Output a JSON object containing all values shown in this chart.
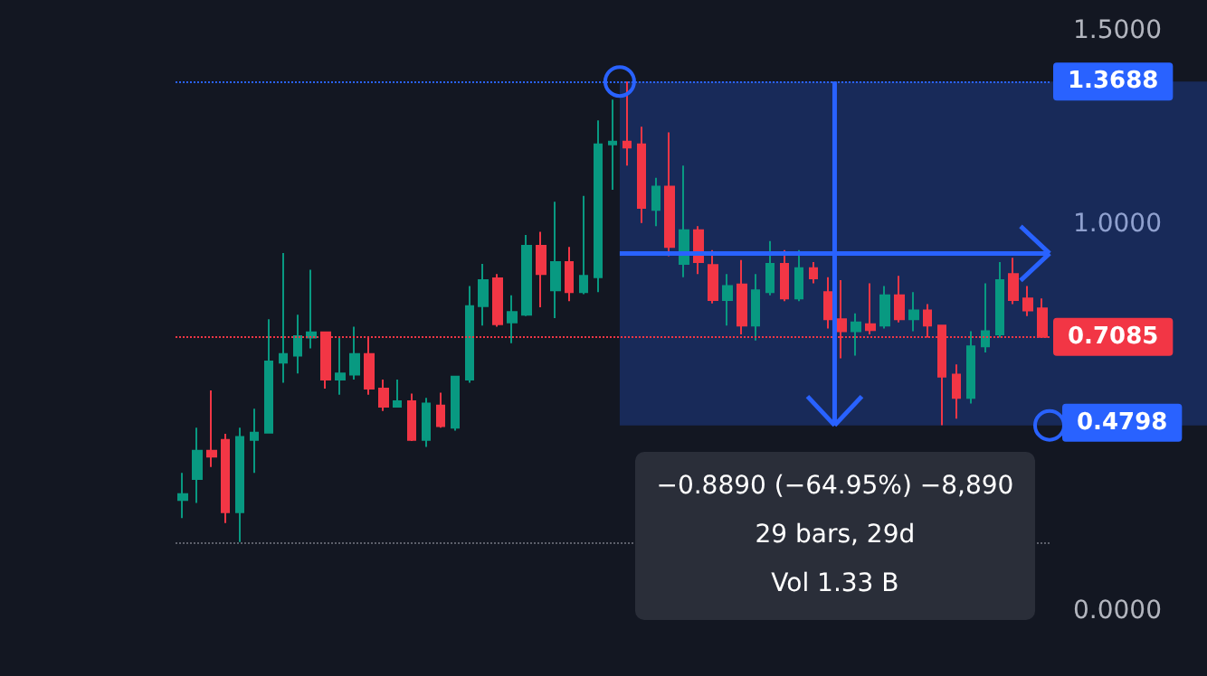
{
  "chart_data": {
    "type": "candlestick",
    "categories": [
      null,
      null,
      null,
      null,
      null,
      null,
      null,
      null,
      null,
      null,
      null,
      null,
      null,
      null,
      null,
      null,
      null,
      null,
      null,
      null,
      null,
      null,
      null,
      null,
      null,
      null,
      null,
      null,
      null,
      null,
      null,
      null,
      null,
      null,
      null,
      null,
      null,
      null,
      null,
      null,
      null,
      null,
      null,
      null,
      null,
      null,
      null,
      null,
      null,
      null,
      null,
      null,
      null,
      null,
      null,
      null,
      null,
      null,
      null,
      null,
      null
    ],
    "ohlc": [
      [
        0.287,
        0.357,
        0.24,
        0.302
      ],
      [
        0.341,
        0.474,
        0.279,
        0.414
      ],
      [
        0.414,
        0.57,
        0.372,
        0.399
      ],
      [
        0.442,
        0.458,
        0.227,
        0.255
      ],
      [
        0.255,
        0.474,
        0.178,
        0.45
      ],
      [
        0.442,
        0.523,
        0.357,
        0.461
      ],
      [
        0.461,
        0.754,
        0.461,
        0.645
      ],
      [
        0.642,
        0.925,
        0.59,
        0.664
      ],
      [
        0.66,
        0.766,
        0.614,
        0.71
      ],
      [
        0.707,
        0.882,
        0.679,
        0.72
      ],
      [
        0.72,
        0.72,
        0.575,
        0.598
      ],
      [
        0.598,
        0.707,
        0.559,
        0.614
      ],
      [
        0.611,
        0.735,
        0.598,
        0.664
      ],
      [
        0.664,
        0.71,
        0.559,
        0.575
      ],
      [
        0.575,
        0.598,
        0.517,
        0.528
      ],
      [
        0.528,
        0.598,
        0.528,
        0.542
      ],
      [
        0.542,
        0.562,
        0.439,
        0.442
      ],
      [
        0.442,
        0.551,
        0.424,
        0.536
      ],
      [
        0.531,
        0.564,
        0.474,
        0.478
      ],
      [
        0.474,
        0.606,
        0.466,
        0.606
      ],
      [
        0.598,
        0.84,
        0.59,
        0.788
      ],
      [
        0.788,
        0.897,
        0.738,
        0.855
      ],
      [
        0.86,
        0.871,
        0.735,
        0.741
      ],
      [
        0.746,
        0.816,
        0.692,
        0.773
      ],
      [
        0.766,
        0.972,
        0.762,
        0.944
      ],
      [
        0.944,
        0.98,
        0.785,
        0.871
      ],
      [
        0.829,
        1.058,
        0.757,
        0.902
      ],
      [
        0.902,
        0.941,
        0.801,
        0.824
      ],
      [
        0.824,
        1.073,
        0.819,
        0.866
      ],
      [
        0.863,
        1.268,
        0.824,
        1.206
      ],
      [
        1.206,
        1.322,
        1.089,
        1.213
      ],
      [
        1.213,
        1.3688,
        1.151,
        1.198
      ],
      [
        1.206,
        1.252,
        1.003,
        1.042
      ],
      [
        1.037,
        1.12,
        0.995,
        1.097
      ],
      [
        1.097,
        1.237,
        0.917,
        0.941
      ],
      [
        0.897,
        1.151,
        0.863,
        0.984
      ],
      [
        0.984,
        0.995,
        0.871,
        0.902
      ],
      [
        0.894,
        0.933,
        0.795,
        0.804
      ],
      [
        0.804,
        0.871,
        0.738,
        0.84
      ],
      [
        0.844,
        0.907,
        0.715,
        0.738
      ],
      [
        0.738,
        0.871,
        0.699,
        0.829
      ],
      [
        0.824,
        0.956,
        0.816,
        0.897
      ],
      [
        0.897,
        0.933,
        0.801,
        0.808
      ],
      [
        0.808,
        0.933,
        0.801,
        0.886
      ],
      [
        0.886,
        0.902,
        0.847,
        0.86
      ],
      [
        0.824,
        0.863,
        0.73,
        0.754
      ],
      [
        0.754,
        0.855,
        0.653,
        0.723
      ],
      [
        0.723,
        0.769,
        0.66,
        0.746
      ],
      [
        0.741,
        0.847,
        0.715,
        0.726
      ],
      [
        0.738,
        0.84,
        0.73,
        0.816
      ],
      [
        0.816,
        0.866,
        0.746,
        0.754
      ],
      [
        0.754,
        0.824,
        0.723,
        0.777
      ],
      [
        0.777,
        0.793,
        0.707,
        0.738
      ],
      [
        0.738,
        0.738,
        0.48,
        0.606
      ],
      [
        0.611,
        0.637,
        0.497,
        0.551
      ],
      [
        0.551,
        0.723,
        0.536,
        0.684
      ],
      [
        0.684,
        0.847,
        0.668,
        0.723
      ],
      [
        0.715,
        0.902,
        0.707,
        0.855
      ],
      [
        0.871,
        0.913,
        0.793,
        0.804
      ],
      [
        0.808,
        0.84,
        0.762,
        0.777
      ],
      [
        0.782,
        0.808,
        0.707,
        0.7085
      ]
    ],
    "ylim": [
      0,
      1.5
    ],
    "yticks": [
      {
        "value": 0,
        "label": "0.0000"
      },
      {
        "value": 1,
        "label": "1.0000"
      },
      {
        "value": 1.5,
        "label": "1.5000"
      }
    ],
    "tick_labels": "y",
    "ref_lines": [
      {
        "axis": "y",
        "value": 1.3688,
        "label": "1.3688",
        "color": "#2962ff",
        "line_style": "dotted"
      },
      {
        "axis": "y",
        "value": 0.178,
        "label": null,
        "color": "#5d606b",
        "line_style": "dotted"
      },
      {
        "axis": "y",
        "value": 0.7085,
        "label": "0.7085",
        "color": "#f23645",
        "line_style": "dotted"
      }
    ],
    "bands": [
      {
        "axis": "y",
        "from": 0.4798,
        "to": 1.3688,
        "label": "0.4798",
        "color": "#2962ff"
      }
    ],
    "annotations": [
      "−0.8890 (−64.95%) −8,890",
      "29 bars, 29d",
      "Vol 1.33 B"
    ],
    "grid": false
  }
}
